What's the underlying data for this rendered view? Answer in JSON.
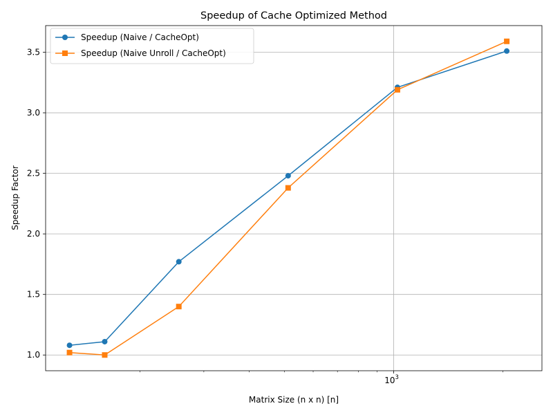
{
  "chart_data": {
    "type": "line",
    "title": "Speedup of Cache Optimized Method",
    "xlabel": "Matrix Size (n x n) [n]",
    "ylabel": "Speedup Factor",
    "x_scale": "log",
    "x": [
      128,
      160,
      256,
      512,
      1024,
      2048
    ],
    "xlim": [
      110,
      2560
    ],
    "ylim": [
      0.87,
      3.72
    ],
    "x_major_ticks": [
      {
        "value": 1000,
        "base": "10",
        "exp": "3"
      }
    ],
    "x_minor_ticks": [
      200,
      300,
      400,
      500,
      600,
      700,
      800,
      900,
      2000
    ],
    "y_ticks": [
      1.0,
      1.5,
      2.0,
      2.5,
      3.0,
      3.5
    ],
    "y_tick_labels": [
      "1.0",
      "1.5",
      "2.0",
      "2.5",
      "3.0",
      "3.5"
    ],
    "grid": true,
    "legend_position": "upper-left",
    "series": [
      {
        "name": "Speedup (Naive / CacheOpt)",
        "color": "#1f77b4",
        "marker": "circle",
        "values": [
          1.08,
          1.11,
          1.77,
          2.48,
          3.21,
          3.51
        ]
      },
      {
        "name": "Speedup (Naive Unroll / CacheOpt)",
        "color": "#ff7f0e",
        "marker": "square",
        "values": [
          1.02,
          1.0,
          1.4,
          2.38,
          3.19,
          3.59
        ]
      }
    ]
  }
}
